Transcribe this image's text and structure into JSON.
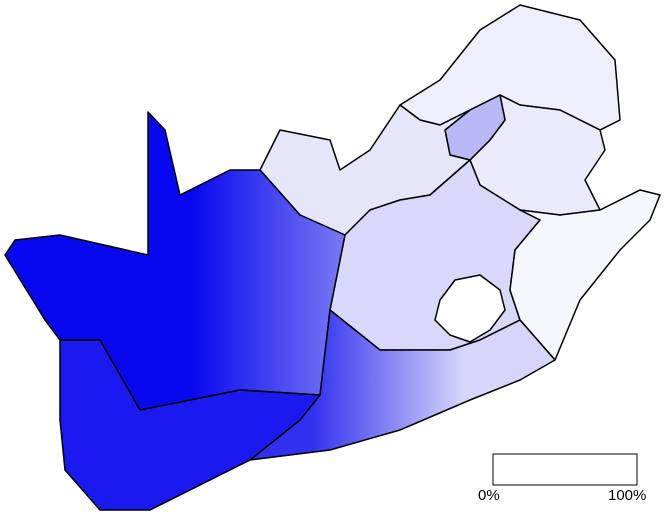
{
  "legend": {
    "min_label": "0%",
    "max_label": "100%",
    "color_low": "#ffffff",
    "color_high": "#0000ff"
  },
  "colors": {
    "western_cape": "#1a1af0",
    "northern_cape_west": "#0808f0",
    "northern_cape_east": "#7a7af4",
    "eastern_cape_west": "#3030ee",
    "eastern_cape_east": "#d6d6fb",
    "free_state": "#d8d8fa",
    "north_west": "#e6e6fb",
    "gauteng": "#b8b8f6",
    "mpumalanga": "#eaeafc",
    "limpopo": "#eeeefd",
    "kwazulu_natal": "#f6f6fe",
    "lesotho": "#ffffff",
    "border": "#000000"
  }
}
